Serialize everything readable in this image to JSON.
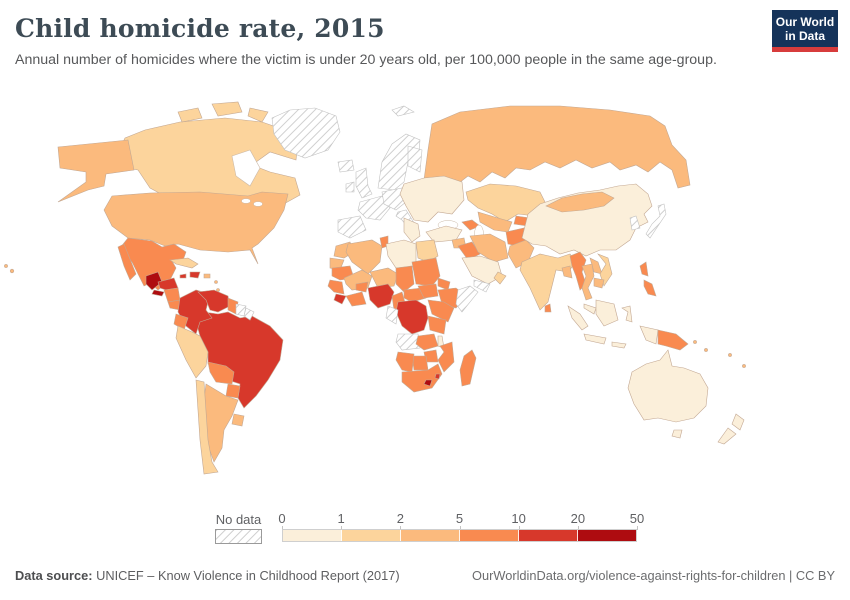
{
  "header": {
    "title": "Child homicide rate, 2015",
    "subtitle": "Annual number of homicides where the victim is under 20 years old, per 100,000 people in the same age-group.",
    "logo": {
      "line1": "Our World",
      "line2": "in Data",
      "bg": "#15335a",
      "stripe": "#d73c3c"
    }
  },
  "chart_data": {
    "type": "choropleth-map",
    "title": "Child homicide rate, 2015",
    "unit": "homicides per 100,000 people under 20 years old",
    "legend": {
      "no_data_label": "No data",
      "thresholds": [
        0,
        1,
        2,
        5,
        10,
        20,
        50
      ],
      "tick_labels": [
        "0",
        "1",
        "2",
        "5",
        "10",
        "20",
        "50"
      ],
      "bin_order": [
        "0-1",
        "1-2",
        "2-5",
        "5-10",
        "10-20",
        "20-50"
      ],
      "bins": {
        "0-1": "#fbefda",
        "1-2": "#fcd49c",
        "2-5": "#fbba7d",
        "5-10": "#f98a50",
        "10-20": "#d7382b",
        "20-50": "#ae0c10"
      },
      "no_data_pattern": "diagonal-hatch"
    },
    "map_style": {
      "border": "#c3a893",
      "no_data_stroke": "#c2c2c2"
    },
    "regions": {
      "greenland": "no-data",
      "iceland": "no-data",
      "svalbard": "no-data",
      "scandinavia": "no-data",
      "finland": "no-data",
      "denmark": "no-data",
      "united-kingdom": "no-data",
      "ireland": "no-data",
      "france": "no-data",
      "iberia": "no-data",
      "central-europe": "no-data",
      "italy": "no-data",
      "eastern-europe": "0-1",
      "balkans": "0-1",
      "russia": "2-5",
      "canada": "1-2",
      "canadian-arctic-1": "1-2",
      "canadian-arctic-2": "1-2",
      "canadian-arctic-3": "1-2",
      "alaska": "2-5",
      "united-states": "2-5",
      "hawaii": "2-5",
      "mexico": "5-10",
      "baja-california": "5-10",
      "guatemala": "20-50",
      "honduras": "10-20",
      "el-salvador": "20-50",
      "nicaragua": "5-10",
      "costa-rica-panama": "5-10",
      "cuba": "1-2",
      "jamaica": "10-20",
      "hispaniola": "10-20",
      "puerto-rico": "2-5",
      "lesser-antilles": "2-5",
      "trinidad": "5-10",
      "colombia": "10-20",
      "venezuela": "10-20",
      "guyana": "5-10",
      "suriname": "no-data",
      "french-guiana": "no-data",
      "ecuador": "5-10",
      "peru": "1-2",
      "brazil": "10-20",
      "bolivia": "5-10",
      "paraguay": "5-10",
      "chile": "1-2",
      "argentina": "2-5",
      "uruguay": "2-5",
      "morocco": "2-5",
      "western-sahara": "2-5",
      "algeria": "2-5",
      "tunisia": "5-10",
      "libya": "0-1",
      "egypt": "1-2",
      "mauritania": "5-10",
      "mali": "2-5",
      "niger": "2-5",
      "chad": "5-10",
      "senegal-guinea": "5-10",
      "sierra-leone-liberia": "10-20",
      "ivory-coast-ghana": "5-10",
      "burkina-faso": "5-10",
      "nigeria": "10-20",
      "cameroon": "5-10",
      "central-african-republic": "5-10",
      "sudan": "5-10",
      "south-sudan": "5-10",
      "eritrea-djibouti": "5-10",
      "ethiopia": "5-10",
      "somalia": "no-data",
      "uganda-kenya": "5-10",
      "tanzania": "5-10",
      "drc": "10-20",
      "congo-gabon": "no-data",
      "angola": "no-data",
      "zambia": "5-10",
      "malawi": "0-1",
      "mozambique": "5-10",
      "zimbabwe": "5-10",
      "botswana": "5-10",
      "namibia": "5-10",
      "south-africa": "5-10",
      "lesotho": "20-50",
      "swaziland": "10-20",
      "madagascar": "5-10",
      "turkey": "0-1",
      "syria": "2-5",
      "iraq": "5-10",
      "iran": "2-5",
      "saudi-arabia": "0-1",
      "yemen": "no-data",
      "oman": "1-2",
      "caucasus": "5-10",
      "kazakhstan": "1-2",
      "uzbekistan-turkmenistan": "2-5",
      "kyrgyzstan-tajikistan": "5-10",
      "afghanistan": "5-10",
      "pakistan": "2-5",
      "india": "1-2",
      "bangladesh": "2-5",
      "sri-lanka": "5-10",
      "china": "0-1",
      "mongolia": "2-5",
      "korea": "no-data",
      "japan": "no-data",
      "myanmar": "5-10",
      "thailand": "2-5",
      "laos": "2-5",
      "vietnam": "1-2",
      "cambodia": "2-5",
      "malaysia": "0-1",
      "philippines-north": "5-10",
      "philippines-south": "5-10",
      "sumatra": "0-1",
      "java": "0-1",
      "borneo": "0-1",
      "sulawesi": "0-1",
      "lesser-sunda": "0-1",
      "west-papua": "0-1",
      "papua-new-guinea": "5-10",
      "pacific-islands": "2-5",
      "australia": "0-1",
      "tasmania": "0-1",
      "new-zealand-north": "0-1",
      "new-zealand-south": "0-1"
    }
  },
  "footer": {
    "source_label": "Data source:",
    "source_text": " UNICEF – Know Violence in Childhood Report (2017)",
    "right_text": "OurWorldinData.org/violence-against-rights-for-children | CC BY"
  }
}
